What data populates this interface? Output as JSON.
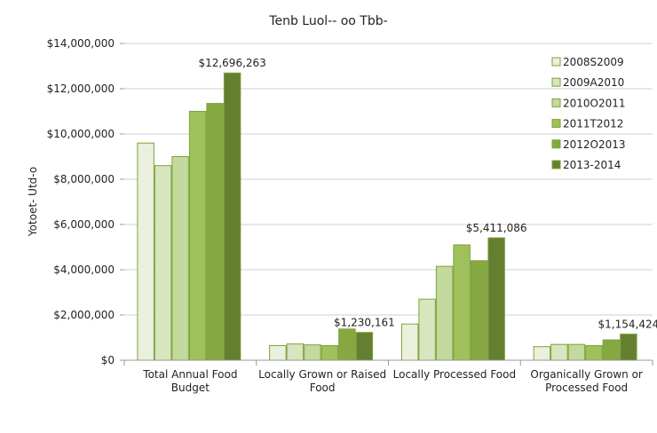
{
  "chart_data": {
    "type": "bar",
    "title": "Tenb Luol-- oo Tbb-",
    "xlabel": "",
    "ylabel": "Yotoet- Utd-o",
    "ylim": [
      0,
      14000000
    ],
    "yticks": [
      0,
      2000000,
      4000000,
      6000000,
      8000000,
      10000000,
      12000000,
      14000000
    ],
    "ytick_labels": [
      "$0",
      "$2,000,000",
      "$4,000,000",
      "$6,000,000",
      "$8,000,000",
      "$10,000,000",
      "$12,000,000",
      "$14,000,000"
    ],
    "grid": true,
    "legend_position": "top-right",
    "categories": [
      [
        "Total Annual Food",
        "Budget"
      ],
      [
        "Locally Grown or Raised",
        "Food"
      ],
      [
        "Locally Processed Food"
      ],
      [
        "Organically Grown or",
        "Processed Food"
      ]
    ],
    "series": [
      {
        "name": "2008S2009",
        "color": "#eaf0dc",
        "values": [
          9600000,
          650000,
          1600000,
          600000
        ]
      },
      {
        "name": "2009A2010",
        "color": "#d7e6be",
        "values": [
          8600000,
          720000,
          2700000,
          700000
        ]
      },
      {
        "name": "2010O2011",
        "color": "#c3d99d",
        "values": [
          9000000,
          680000,
          4150000,
          700000
        ]
      },
      {
        "name": "2011T2012",
        "color": "#9fc15c",
        "values": [
          11000000,
          650000,
          5100000,
          650000
        ]
      },
      {
        "name": "2012O2013",
        "color": "#86a843",
        "values": [
          11350000,
          1380000,
          4400000,
          900000
        ]
      },
      {
        "name": "2013-2014",
        "color": "#657f30",
        "values": [
          12696263,
          1230161,
          5411086,
          1154424
        ]
      }
    ],
    "data_labels": [
      {
        "category": 0,
        "series": 5,
        "text": "$12,696,263"
      },
      {
        "category": 1,
        "series": 5,
        "text": "$1,230,161"
      },
      {
        "category": 2,
        "series": 5,
        "text": "$5,411,086"
      },
      {
        "category": 3,
        "series": 5,
        "text": "$1,154,424"
      }
    ],
    "bar_border_color": "#7da23a"
  }
}
